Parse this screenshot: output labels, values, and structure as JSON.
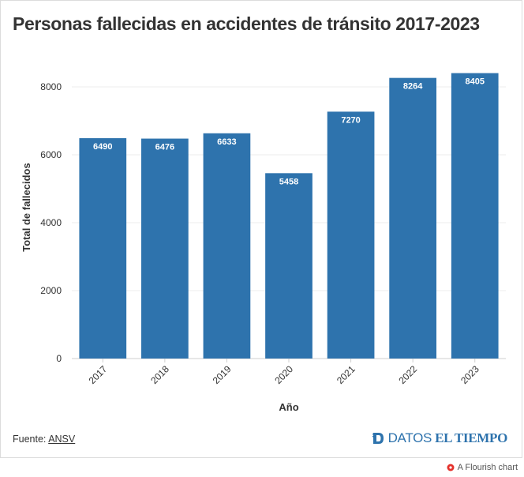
{
  "chart_data": {
    "type": "bar",
    "title": "Personas fallecidas en accidentes de tránsito 2017-2023",
    "xlabel": "Año",
    "ylabel": "Total de fallecidos",
    "categories": [
      "2017",
      "2018",
      "2019",
      "2020",
      "2021",
      "2022",
      "2023"
    ],
    "values": [
      6490,
      6476,
      6633,
      5458,
      7270,
      8264,
      8405
    ],
    "ylim": [
      0,
      9000
    ],
    "yticks": [
      0,
      2000,
      4000,
      6000,
      8000
    ],
    "grid": true,
    "legend": "none",
    "bar_color": "#2e73ad"
  },
  "footer": {
    "source_prefix": "Fuente: ",
    "source_link": "ANSV",
    "brand_datos": "DATOS",
    "brand_tiempo": "EL TIEMPO",
    "flourish": "A Flourish chart"
  },
  "colors": {
    "brand": "#2e73ad",
    "flourish_icon": "#e5322c"
  }
}
